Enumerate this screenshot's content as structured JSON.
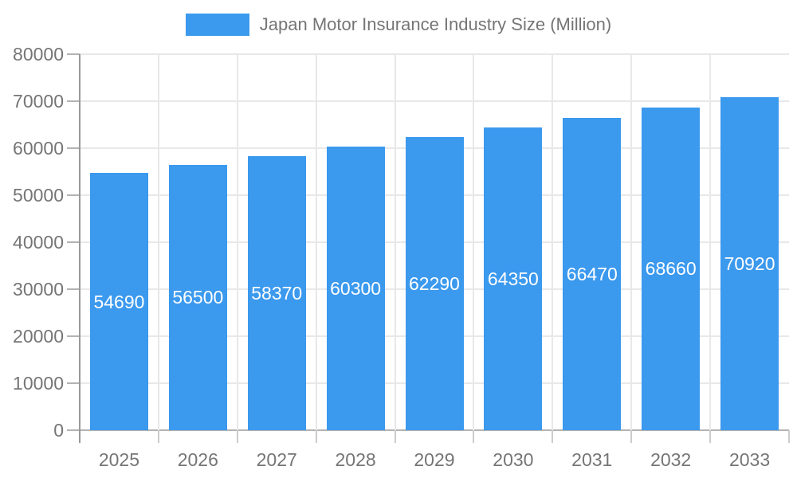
{
  "chart_data": {
    "type": "bar",
    "title": "Japan Motor Insurance Industry Size (Million)",
    "categories": [
      "2025",
      "2026",
      "2027",
      "2028",
      "2029",
      "2030",
      "2031",
      "2032",
      "2033"
    ],
    "values": [
      54690,
      56500,
      58370,
      60300,
      62290,
      64350,
      66470,
      68660,
      70920
    ],
    "xlabel": "",
    "ylabel": "",
    "ylim": [
      0,
      80000
    ],
    "ytick_interval": 10000,
    "yticks": [
      0,
      10000,
      20000,
      30000,
      40000,
      50000,
      60000,
      70000,
      80000
    ],
    "grid": "on",
    "legend_position": "top",
    "bar_labels": "inside-centered",
    "colors": {
      "bar": "#3b99ee",
      "bar_label_text": "#ffffff",
      "axis_text": "#757575",
      "gridline": "#e8e8e8",
      "baseline": "#b3b3b3",
      "axis_line": "#999999",
      "tick": "#cccccc",
      "background": "#ffffff"
    }
  }
}
